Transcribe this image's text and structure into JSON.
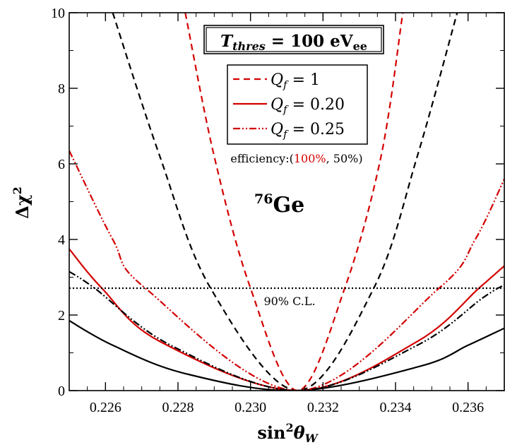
{
  "chart_data": {
    "type": "line",
    "xlabel": {
      "base": "sin",
      "sup": "2",
      "theta": "θ",
      "sub": "W"
    },
    "ylabel": {
      "base": "Δχ",
      "sup": "2"
    },
    "xlim": [
      0.225,
      0.237
    ],
    "ylim": [
      0,
      10
    ],
    "xticks": [
      {
        "value": 0.226,
        "label": "0.226"
      },
      {
        "value": 0.228,
        "label": "0.228"
      },
      {
        "value": 0.23,
        "label": "0.230"
      },
      {
        "value": 0.232,
        "label": "0.232"
      },
      {
        "value": 0.234,
        "label": "0.234"
      },
      {
        "value": 0.236,
        "label": "0.236"
      }
    ],
    "yticks": [
      {
        "value": 0,
        "label": "0"
      },
      {
        "value": 2,
        "label": "2"
      },
      {
        "value": 4,
        "label": "4"
      },
      {
        "value": 6,
        "label": "6"
      },
      {
        "value": 8,
        "label": "8"
      },
      {
        "value": 10,
        "label": "10"
      }
    ],
    "threshold_box": {
      "var": "T",
      "sub": "thres",
      "eq": " = 100 eV",
      "unit_sub": "ee"
    },
    "isotope": {
      "sup": "76",
      "base": "Ge"
    },
    "efficiency": {
      "prefix": "efficiency:(",
      "first": "100%",
      "sep": ", ",
      "second": "50%",
      "suffix": ")"
    },
    "cl_line": {
      "y": 2.71,
      "label": "90% C.L."
    },
    "legend": [
      {
        "name_var": "Q",
        "name_sub": "f",
        "name_eq": " = 1",
        "style": "dashed"
      },
      {
        "name_var": "Q",
        "name_sub": "f",
        "name_eq": " = 0.20",
        "style": "solid"
      },
      {
        "name_var": "Q",
        "name_sub": "f",
        "name_eq": " = 0.25",
        "style": "dashdotdot"
      }
    ],
    "colors": {
      "efficiency_100": "#d40000",
      "efficiency_50": "#000000"
    },
    "series": [
      {
        "style": "dashed",
        "color": "#d40000",
        "x": [
          0.2282,
          0.229,
          0.23,
          0.2313,
          0.2326,
          0.2336,
          0.2342
        ],
        "y": [
          10,
          6.2,
          2.71,
          0,
          2.71,
          6.2,
          10
        ]
      },
      {
        "style": "dashed",
        "color": "#000000",
        "x": [
          0.2262,
          0.2275,
          0.2289,
          0.2313,
          0.2334,
          0.2346,
          0.2357
        ],
        "y": [
          10,
          6.2,
          2.71,
          0,
          2.71,
          6.2,
          10
        ]
      },
      {
        "style": "solid",
        "color": "#d40000",
        "x": [
          0.225,
          0.2259,
          0.2275,
          0.2313,
          0.2346,
          0.2363,
          0.237
        ],
        "y": [
          3.75,
          2.71,
          1.3,
          0,
          1.3,
          2.71,
          3.3
        ]
      },
      {
        "style": "solid",
        "color": "#000000",
        "x": [
          0.225,
          0.2262,
          0.2282,
          0.2313,
          0.2347,
          0.236,
          0.237
        ],
        "y": [
          1.85,
          1.2,
          0.45,
          0,
          0.65,
          1.2,
          1.65
        ]
      },
      {
        "style": "dashdotdot",
        "color": "#d40000",
        "x": [
          0.225,
          0.2262,
          0.2271,
          0.2313,
          0.2352,
          0.2362,
          0.237
        ],
        "y": [
          6.35,
          4.0,
          2.71,
          0,
          2.71,
          4.0,
          5.6
        ]
      },
      {
        "style": "dashdotdot",
        "color": "#000000",
        "x": [
          0.225,
          0.2257,
          0.2278,
          0.2313,
          0.2346,
          0.2364,
          0.237
        ],
        "y": [
          3.15,
          2.71,
          1.2,
          0,
          1.2,
          2.45,
          2.8
        ]
      }
    ]
  }
}
